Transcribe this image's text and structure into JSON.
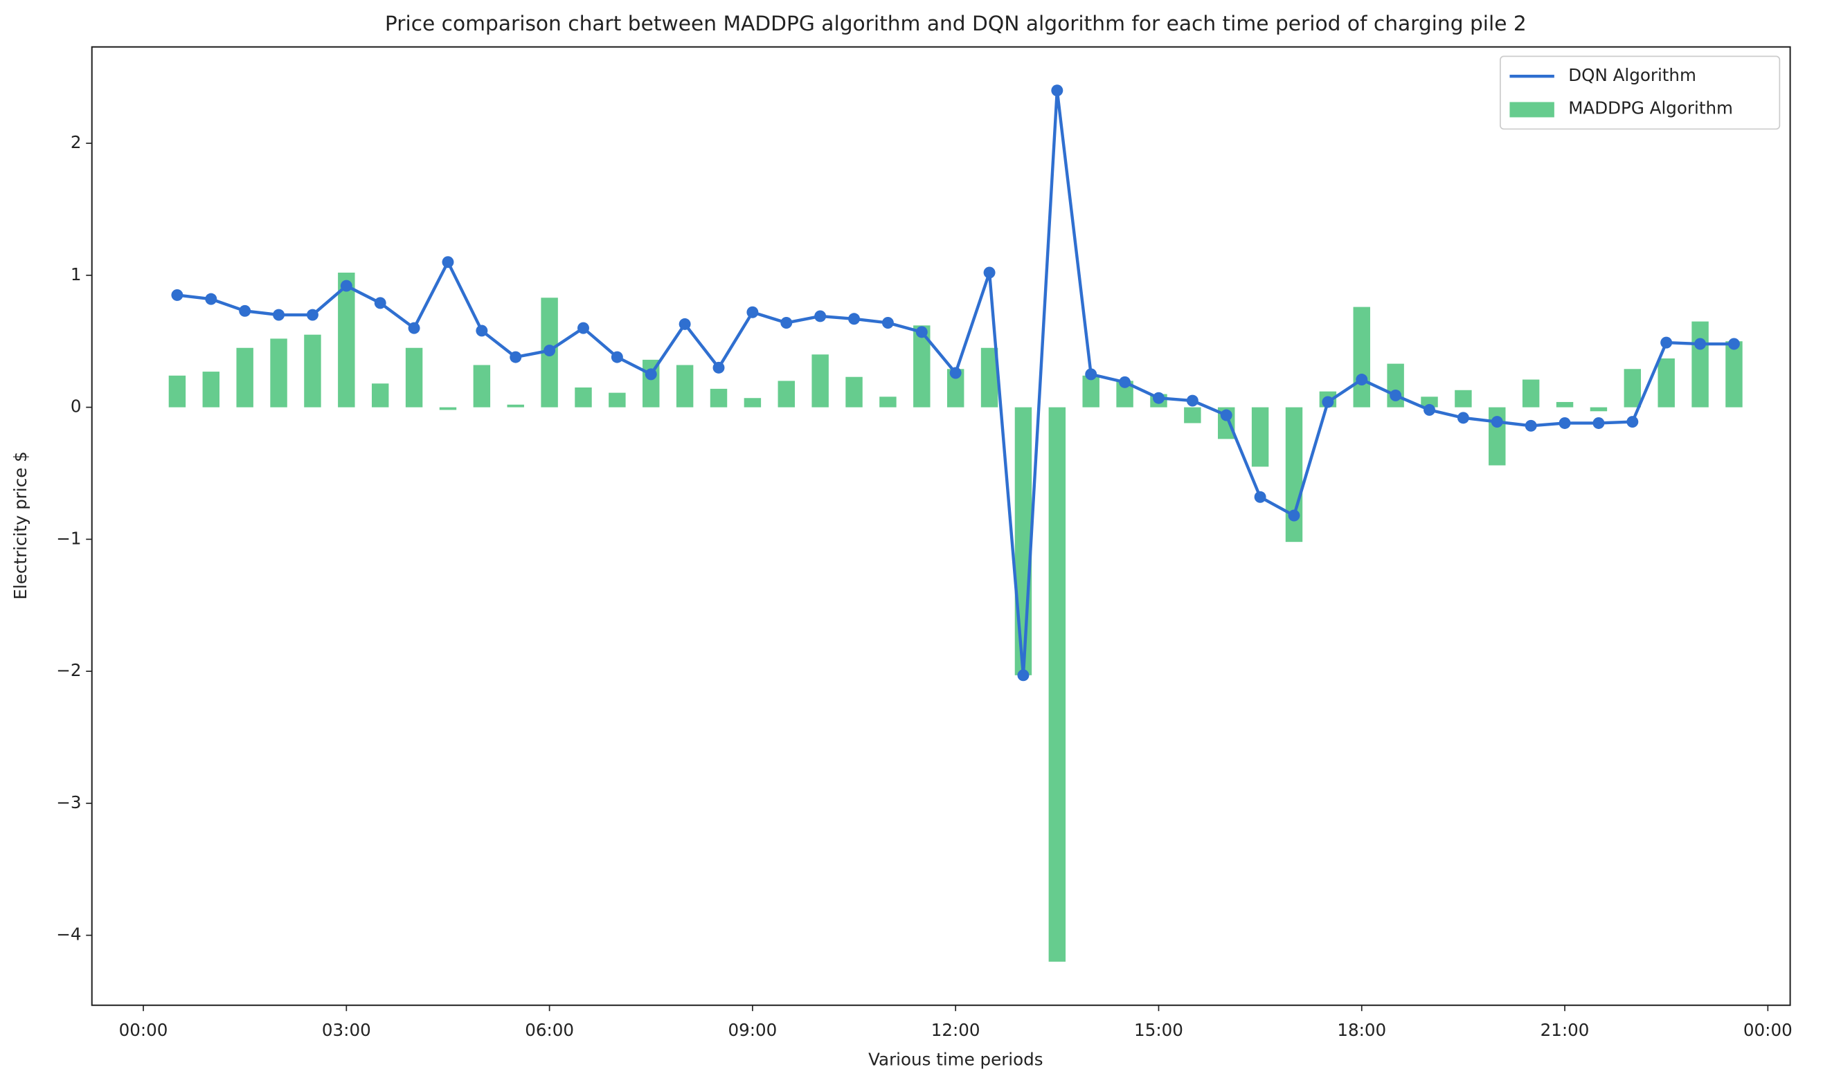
{
  "chart_data": {
    "type": "bar",
    "title": "Price comparison chart between MADDPG algorithm and DQN algorithm for each time period of charging pile 2",
    "x_label": "Various time periods",
    "y_label": "Electricity price $",
    "x": [
      0.5,
      1,
      1.5,
      2,
      2.5,
      3,
      3.5,
      4,
      4.5,
      5,
      5.5,
      6,
      6.5,
      7,
      7.5,
      8,
      8.5,
      9,
      9.5,
      10,
      10.5,
      11,
      11.5,
      12,
      12.5,
      13,
      13.5,
      14,
      14.5,
      15,
      15.5,
      16,
      16.5,
      17,
      17.5,
      18,
      18.5,
      19,
      19.5,
      20,
      20.5,
      21,
      21.5,
      22,
      22.5,
      23,
      23.5
    ],
    "series": [
      {
        "name": "DQN Algorithm",
        "type": "line",
        "color": "#2f6fd0",
        "values": [
          0.85,
          0.82,
          0.73,
          0.7,
          0.7,
          0.92,
          0.79,
          0.6,
          1.1,
          0.58,
          0.38,
          0.43,
          0.6,
          0.38,
          0.25,
          0.63,
          0.3,
          0.72,
          0.64,
          0.69,
          0.67,
          0.64,
          0.57,
          0.26,
          1.02,
          -2.03,
          2.4,
          0.25,
          0.19,
          0.07,
          0.05,
          -0.06,
          -0.68,
          -0.82,
          0.04,
          0.21,
          0.09,
          -0.02,
          -0.08,
          -0.11,
          -0.14,
          -0.12,
          -0.12,
          -0.11,
          0.49,
          0.48,
          0.48
        ]
      },
      {
        "name": "MADDPG Algorithm",
        "type": "bar",
        "color": "#66cc8e",
        "values": [
          0.24,
          0.27,
          0.45,
          0.52,
          0.55,
          1.02,
          0.18,
          0.45,
          -0.02,
          0.32,
          0.02,
          0.83,
          0.15,
          0.11,
          0.36,
          0.32,
          0.14,
          0.07,
          0.2,
          0.4,
          0.23,
          0.08,
          0.62,
          0.29,
          0.45,
          -2.03,
          -4.2,
          0.24,
          0.2,
          0.1,
          -0.12,
          -0.24,
          -0.45,
          -1.02,
          0.12,
          0.76,
          0.33,
          0.08,
          0.13,
          -0.44,
          0.21,
          0.04,
          -0.03,
          0.29,
          0.37,
          0.65,
          0.5
        ]
      }
    ],
    "xlim": [
      -0.76,
      24.33
    ],
    "ylim": [
      -4.53,
      2.73
    ],
    "xticks": [
      {
        "value": 0,
        "label": "00:00"
      },
      {
        "value": 3,
        "label": "03:00"
      },
      {
        "value": 6,
        "label": "06:00"
      },
      {
        "value": 9,
        "label": "09:00"
      },
      {
        "value": 12,
        "label": "12:00"
      },
      {
        "value": 15,
        "label": "15:00"
      },
      {
        "value": 18,
        "label": "18:00"
      },
      {
        "value": 21,
        "label": "21:00"
      },
      {
        "value": 24,
        "label": "00:00"
      }
    ],
    "yticks": [
      {
        "value": -4,
        "label": "−4"
      },
      {
        "value": -3,
        "label": "−3"
      },
      {
        "value": -2,
        "label": "−2"
      },
      {
        "value": -1,
        "label": "−1"
      },
      0,
      1,
      2
    ],
    "legend": "upper right"
  }
}
